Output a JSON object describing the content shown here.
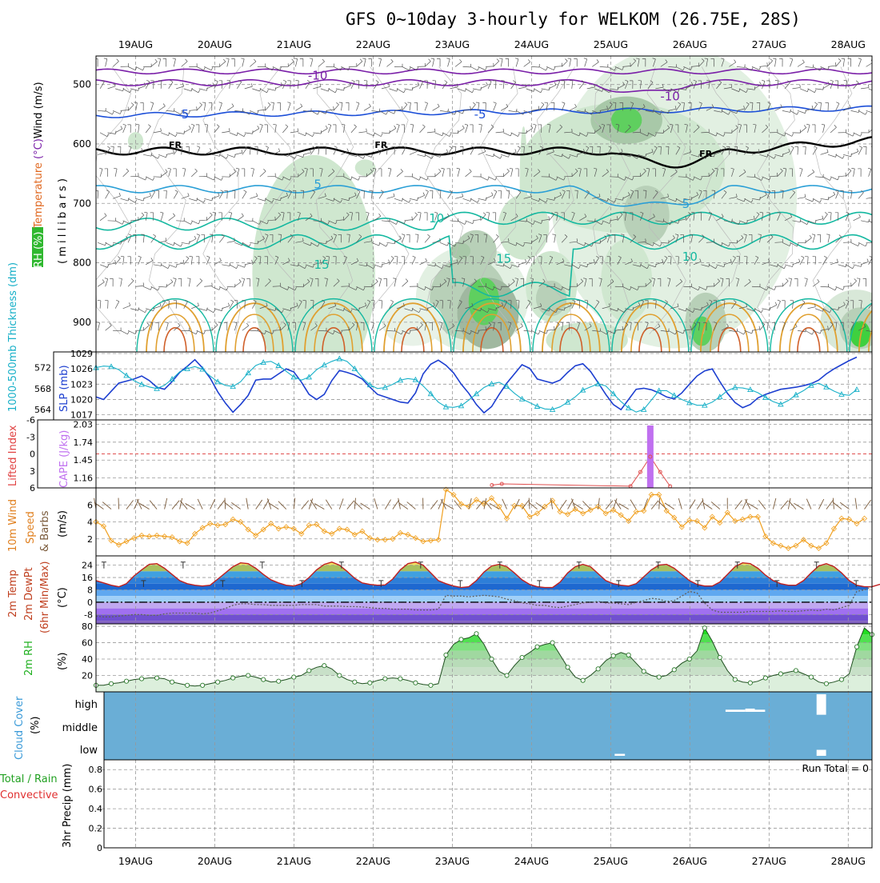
{
  "title": "GFS 0~10day 3-hourly for WELKOM (26.75E, 28S)",
  "dates": [
    "19AUG",
    "20AUG",
    "21AUG",
    "22AUG",
    "23AUG",
    "24AUG",
    "25AUG",
    "26AUG",
    "27AUG",
    "28AUG"
  ],
  "colors": {
    "purple": "#7a1fa8",
    "blue": "#1c4fd8",
    "cyan": "#2a9fd6",
    "teal": "#14b8a0",
    "orange": "#e0a030",
    "darkorange": "#d0602a",
    "green": "#18c018",
    "slp": "#1d3fd0",
    "thick": "#18b0c8",
    "cape": "#c070f0",
    "wind10": "#f0a020",
    "cloud": "#6aaed6"
  },
  "chart_data": [
    {
      "type": "contour",
      "panel": "upper-air",
      "ylabel_parts": [
        "RH (%)",
        "Temperature (°C)",
        "Wind (m/s)"
      ],
      "yunit": "( m i l l i b a r s )",
      "yticks": [
        500,
        600,
        700,
        800,
        900
      ],
      "ylim": [
        452,
        950
      ],
      "contour_labels": [
        {
          "text": "-10",
          "x": 21.3,
          "p": 485
        },
        {
          "text": "-10",
          "x": 25.75,
          "p": 520
        },
        {
          "text": "-5",
          "x": 19.6,
          "p": 550
        },
        {
          "text": "-5",
          "x": 23.35,
          "p": 550
        },
        {
          "text": "FR",
          "x": 19.5,
          "p": 600
        },
        {
          "text": "FR",
          "x": 22.1,
          "p": 600
        },
        {
          "text": "FR",
          "x": 26.2,
          "p": 615
        },
        {
          "text": "5",
          "x": 21.3,
          "p": 668
        },
        {
          "text": "5",
          "x": 25.95,
          "p": 701
        },
        {
          "text": "10",
          "x": 22.8,
          "p": 725
        },
        {
          "text": "10",
          "x": 26.0,
          "p": 790
        },
        {
          "text": "15",
          "x": 21.35,
          "p": 803
        },
        {
          "text": "15",
          "x": 23.65,
          "p": 793
        }
      ]
    },
    {
      "type": "line",
      "panel": "slp-thickness",
      "ylabel_left": "1000-500mb Thickness (dm)",
      "ylabel_right": "SLP (mb)",
      "yticks_left": [
        564,
        568,
        572
      ],
      "yticks_right": [
        1017,
        1020,
        1023,
        1026,
        1029
      ],
      "ylim_right": [
        1016,
        1029
      ],
      "series": [
        {
          "name": "SLP (mb)",
          "values": [
            1020.5,
            1020,
            1021.6,
            1023.2,
            1023.6,
            1024,
            1024.6,
            1023.7,
            1022.4,
            1022,
            1023.5,
            1025.3,
            1026.5,
            1027.8,
            1026.2,
            1024.2,
            1021.5,
            1019.3,
            1017.5,
            1019,
            1020.8,
            1023.8,
            1024,
            1024,
            1025,
            1026,
            1025.4,
            1023.4,
            1021,
            1020,
            1021,
            1023.7,
            1025.7,
            1025.3,
            1024.8,
            1024,
            1022.4,
            1021,
            1020.5,
            1020,
            1019.5,
            1019.3,
            1021.3,
            1025,
            1026.9,
            1027.7,
            1026.7,
            1025.2,
            1023,
            1021.2,
            1019,
            1017.4,
            1018.6,
            1021,
            1023.2,
            1025,
            1026.8,
            1026.1,
            1024,
            1023.6,
            1023.2,
            1023.8,
            1025.3,
            1026.6,
            1027,
            1025.5,
            1023.3,
            1021,
            1019,
            1018,
            1020,
            1022,
            1022.2,
            1021.9,
            1021.3,
            1020.5,
            1020.1,
            1021.3,
            1023,
            1024.6,
            1025.6,
            1026,
            1023.5,
            1021.2,
            1019.4,
            1018.4,
            1019,
            1020.3,
            1021,
            1021.5,
            1022,
            1022.2,
            1022.4,
            1022.7,
            1023.1,
            1023.8,
            1025,
            1026,
            1026.8,
            1027.6,
            1028.3
          ]
        },
        {
          "name": "1000-500mb Thickness (dm)",
          "values": [
            572,
            572.3,
            572.2,
            571.6,
            570.5,
            569.5,
            568.8,
            568.3,
            568,
            568.6,
            569.8,
            571.2,
            571.8,
            572.2,
            571.7,
            570.4,
            569.3,
            568.6,
            568.4,
            569.3,
            571,
            572.4,
            573,
            573.2,
            572.4,
            571.3,
            570.2,
            569.6,
            570.2,
            571.6,
            572.5,
            573.2,
            573.7,
            573.2,
            571.8,
            570.1,
            568.7,
            568,
            568.2,
            568.8,
            569.6,
            569.9,
            569.7,
            568.5,
            567,
            565.4,
            564.5,
            564.4,
            564.7,
            565.8,
            567,
            568.2,
            568.9,
            569.2,
            568.4,
            567.1,
            566,
            565.3,
            564.6,
            564.1,
            564,
            564.5,
            565.4,
            566.4,
            567.7,
            568.3,
            568.9,
            568.5,
            567,
            565.5,
            564.3,
            563.5,
            564,
            565.8,
            567.6,
            567.6,
            566.7,
            565.9,
            565.3,
            564.8,
            564.8,
            565.4,
            566.4,
            567.6,
            568.2,
            568.1,
            567.8,
            567.2,
            566.3,
            565.5,
            565,
            565.7,
            566.8,
            567.6,
            568.6,
            569,
            568.3,
            567.5,
            566.9,
            566.7,
            567.8
          ]
        }
      ]
    },
    {
      "type": "bar",
      "panel": "cape-li",
      "ylabel_left": "Lifted Index",
      "ylabel_right": "CAPE (J/kg)",
      "yticks_left": [
        "-6",
        "-3",
        "0",
        "3",
        "6"
      ],
      "yticks_right": [
        1.16,
        1.45,
        1.74,
        2.03
      ],
      "ylim_right": [
        1.0,
        2.1
      ],
      "cape_bars": [
        {
          "x": 25.5,
          "value": 2.01
        }
      ],
      "li_line_points": [
        {
          "x": 23.5,
          "value": 5.5
        },
        {
          "x": 23.625,
          "value": 5.3
        },
        {
          "x": 25.25,
          "value": 5.7
        },
        {
          "x": 25.375,
          "value": 3.2
        },
        {
          "x": 25.5,
          "value": 0.5
        },
        {
          "x": 25.625,
          "value": 3.2
        },
        {
          "x": 25.75,
          "value": 5.7
        }
      ]
    },
    {
      "type": "line",
      "panel": "wind10m",
      "ylabel": "10m Wind Speed & Barbs",
      "yunit": "(m/s)",
      "yticks": [
        2,
        4,
        6
      ],
      "ylim": [
        0,
        8
      ],
      "series": [
        {
          "name": "10m Wind Speed",
          "values": [
            4,
            3.5,
            1.8,
            1.3,
            1.7,
            2.1,
            2.4,
            2.3,
            2.4,
            2.3,
            2.2,
            1.7,
            1.5,
            2.6,
            3.3,
            3.8,
            3.6,
            3.7,
            4.3,
            4.0,
            3.1,
            2.4,
            3.1,
            3.8,
            3.2,
            3.4,
            3.2,
            2.6,
            3.6,
            3.7,
            2.9,
            2.6,
            3.2,
            3.1,
            2.5,
            2.9,
            2.1,
            1.9,
            1.9,
            2.0,
            2.7,
            2.5,
            2.1,
            1.7,
            1.8,
            1.9,
            7.8,
            7.2,
            6.1,
            5.8,
            6.6,
            6.1,
            6.8,
            5.8,
            4.4,
            5.9,
            5.9,
            4.6,
            5.0,
            5.8,
            6.5,
            5.2,
            4.9,
            5.5,
            5.0,
            5.4,
            5.8,
            5.0,
            5.4,
            4.8,
            4.1,
            5.2,
            5.3,
            7.2,
            7.2,
            5.3,
            4.5,
            3.4,
            4.2,
            4.1,
            3.3,
            4.6,
            3.9,
            5.1,
            4.1,
            4.3,
            4.6,
            4.6,
            2.3,
            1.5,
            1.2,
            0.9,
            1.2,
            1.9,
            1.2,
            0.9,
            1.5,
            3.2,
            4.4,
            4.3,
            3.8,
            4.4
          ]
        }
      ]
    },
    {
      "type": "area",
      "panel": "temp",
      "ylabel": "2m Temp 2m DewPt (6hr Min/Max)",
      "yunit": "(°C)",
      "yticks": [
        -8,
        0,
        8,
        16,
        24
      ],
      "ylim": [
        -14,
        30
      ],
      "series": [
        {
          "name": "2m Temp",
          "values": [
            14,
            12.5,
            11,
            10,
            12,
            17,
            21,
            24.5,
            25,
            22,
            18,
            14,
            12,
            11,
            10.5,
            11,
            15,
            19,
            23,
            25.5,
            25,
            22,
            18,
            14.5,
            12.5,
            11,
            10.5,
            12,
            16,
            21,
            24.5,
            26,
            24,
            20,
            15.5,
            12.5,
            11.5,
            11,
            11.2,
            15,
            21,
            25,
            26,
            24,
            19,
            14,
            12,
            10.5,
            9.5,
            10,
            14,
            19.5,
            23.5,
            24.5,
            23,
            19,
            14.5,
            11.5,
            10,
            9.5,
            9.5,
            13,
            19,
            23,
            24.5,
            23,
            18.5,
            14,
            12,
            11,
            10.5,
            12,
            16.5,
            21,
            24,
            24.5,
            22,
            18,
            14,
            11.5,
            10.5,
            10.5,
            13,
            18,
            23,
            25.5,
            25,
            22,
            17.5,
            14,
            12,
            11,
            11,
            14,
            19,
            23.5,
            25,
            23,
            19,
            14,
            11,
            10,
            10,
            11.5,
            12
          ]
        },
        {
          "name": "2m DewPt",
          "values": [
            -9,
            -9.5,
            -9.5,
            -9,
            -8.5,
            -8,
            -8,
            -8.5,
            -8.5,
            -7.5,
            -7,
            -7,
            -7,
            -7,
            -7.5,
            -7,
            -5.5,
            -4,
            -2,
            -1,
            -1,
            -1.5,
            -1.5,
            -2,
            -2,
            -2,
            -2,
            -1.5,
            -1.5,
            -1.5,
            -2.5,
            -2.5,
            -2.5,
            -2.8,
            -2.8,
            -3,
            -3.5,
            -4,
            -4,
            -4.5,
            -4.5,
            -4.5,
            -5,
            -5,
            -5,
            -4.5,
            4.5,
            4,
            4,
            3.5,
            4,
            4.5,
            4,
            3.5,
            2,
            1,
            -0.5,
            -1,
            -2,
            -2,
            -3,
            -3.5,
            -2.5,
            -1.5,
            -0.5,
            0,
            0.5,
            -0.5,
            -0.5,
            -1,
            -1.5,
            0,
            1,
            2.5,
            2,
            0.5,
            1,
            4,
            7,
            6,
            -0.5,
            -5,
            -6.5,
            -6.5,
            -6.5,
            -6.5,
            -6,
            -6,
            -6,
            -6,
            -5.5,
            -6,
            -6,
            -5.5,
            -5,
            -5.5,
            -4.5,
            -5,
            -3.5,
            -2,
            7,
            8,
            10
          ]
        }
      ]
    },
    {
      "type": "area",
      "panel": "rh2m",
      "ylabel": "2m RH",
      "yunit": "(%)",
      "yticks": [
        20,
        40,
        60,
        80
      ],
      "ylim": [
        0,
        80
      ],
      "series": [
        {
          "name": "2m RH",
          "values": [
            8,
            8,
            10,
            11,
            13,
            15,
            16,
            17,
            17,
            16,
            12,
            10,
            8,
            7,
            8,
            10,
            12,
            14,
            17,
            19,
            20,
            18,
            15,
            12,
            13,
            15,
            18,
            20,
            26,
            30,
            32,
            28,
            20,
            15,
            12,
            10,
            11,
            14,
            16,
            17,
            16,
            14,
            11,
            9,
            8,
            10,
            45,
            58,
            64,
            66,
            71,
            58,
            40,
            25,
            20,
            32,
            42,
            48,
            55,
            58,
            60,
            45,
            30,
            18,
            14,
            20,
            28,
            38,
            44,
            48,
            45,
            35,
            25,
            20,
            18,
            20,
            27,
            35,
            40,
            50,
            78,
            62,
            42,
            26,
            15,
            12,
            11,
            13,
            17,
            20,
            22,
            24,
            26,
            22,
            18,
            12,
            10,
            12,
            15,
            22,
            55,
            78,
            70
          ]
        }
      ]
    },
    {
      "type": "bar",
      "panel": "cloud",
      "ylabel": "Cloud Cover",
      "yunit": "(%)",
      "yticks": [
        "high",
        "middle",
        "low"
      ],
      "clear_patches": [
        {
          "x0": 25.05,
          "x1": 25.18,
          "level": "low",
          "clear": 0.1
        },
        {
          "x0": 26.45,
          "x1": 26.7,
          "level": "high",
          "clear": 0.1
        },
        {
          "x0": 26.7,
          "x1": 26.82,
          "level": "high",
          "clear": 0.15
        },
        {
          "x0": 26.82,
          "x1": 26.95,
          "level": "high",
          "clear": 0.1
        },
        {
          "x0": 27.6,
          "x1": 27.72,
          "level": "high",
          "clear": 0.95
        },
        {
          "x0": 27.6,
          "x1": 27.72,
          "level": "low",
          "clear": 0.3
        }
      ]
    },
    {
      "type": "bar",
      "panel": "precip",
      "ylabel_parts": [
        "Total / Rain",
        "Convective",
        "3hr Precip (mm)"
      ],
      "yticks": [
        0,
        0.2,
        0.4,
        0.6,
        0.8
      ],
      "ylim": [
        0,
        0.9
      ],
      "note": "Run Total = 0",
      "values": []
    }
  ]
}
